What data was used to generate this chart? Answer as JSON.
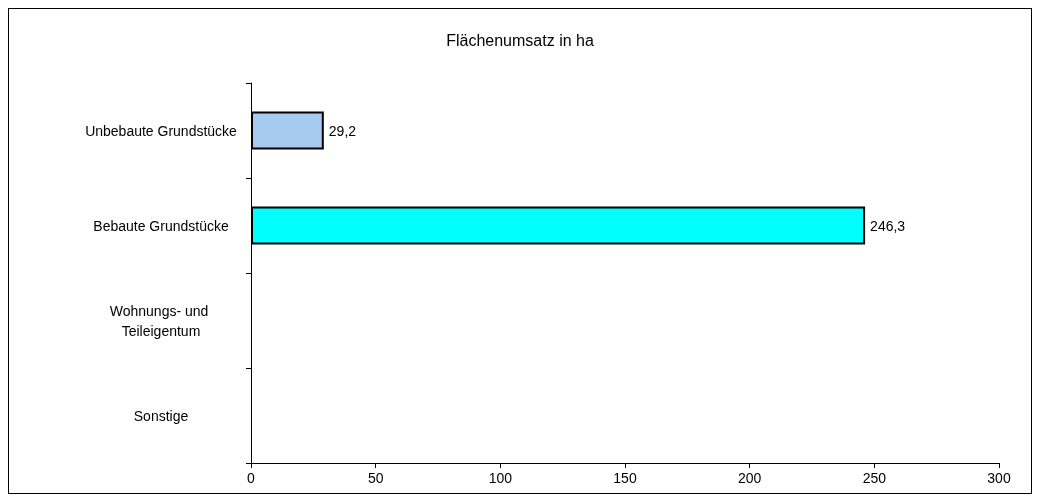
{
  "chart_data": {
    "type": "bar",
    "orientation": "horizontal",
    "title": "Flächenumsatz in ha",
    "categories": [
      "Unbebaute Grundstücke",
      "Bebaute Grundstücke",
      "Wohnungs- und Teileigentum",
      "Sonstige"
    ],
    "values": [
      29.2,
      246.3,
      null,
      null
    ],
    "colors": [
      "#a6caf0",
      "#00ffff",
      "#00ffff",
      "#00ffff"
    ],
    "value_labels": [
      "29,2",
      "246,3",
      null,
      null
    ],
    "xlim": [
      0,
      300
    ],
    "xticks": [
      0,
      50,
      100,
      150,
      200,
      250,
      300
    ],
    "grid": false
  }
}
